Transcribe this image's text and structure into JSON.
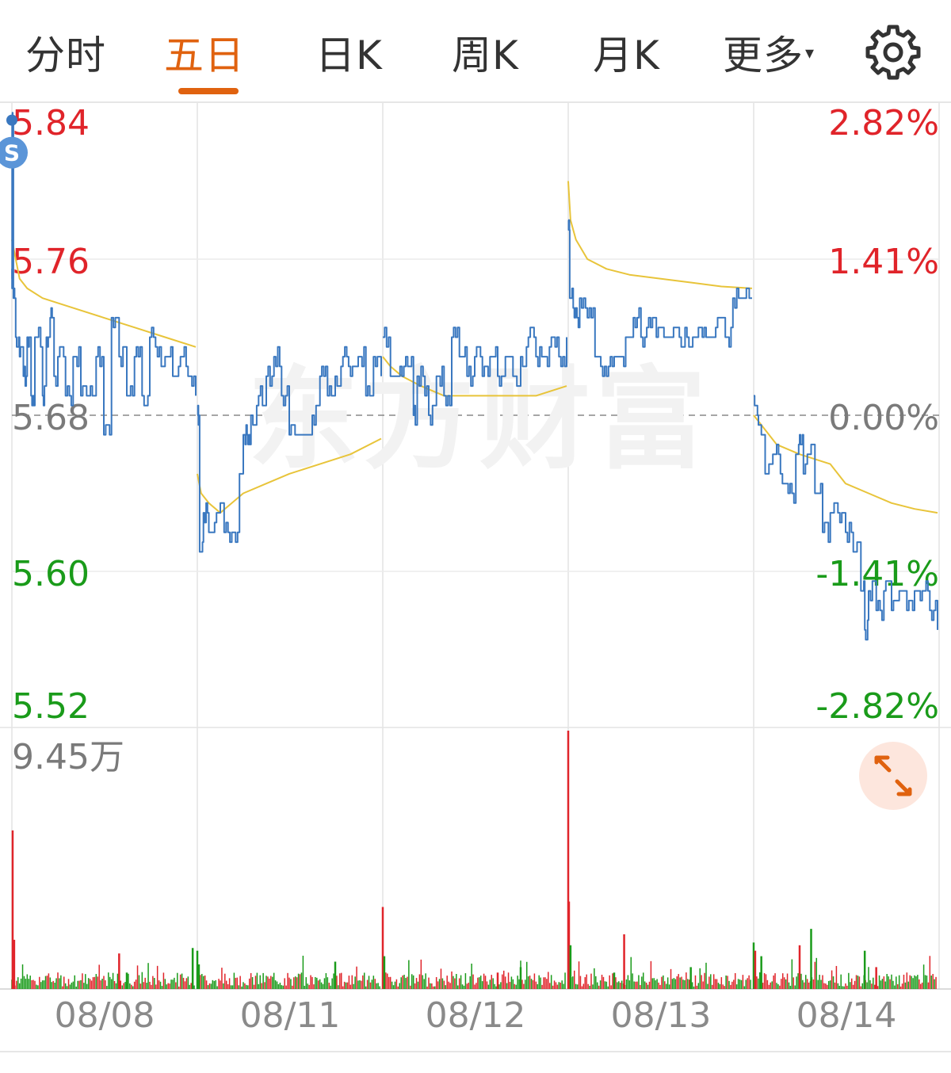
{
  "tabs": [
    {
      "label": "分时",
      "active": false
    },
    {
      "label": "五日",
      "active": true
    },
    {
      "label": "日K",
      "active": false
    },
    {
      "label": "周K",
      "active": false
    },
    {
      "label": "月K",
      "active": false
    },
    {
      "label": "更多",
      "active": false
    }
  ],
  "more_arrow": "▾",
  "icons": {
    "settings": "gear-icon",
    "expand": "expand-diagonal-icon",
    "marker": "s-badge"
  },
  "marker_label": "S",
  "watermark": "东方财富",
  "colors": {
    "accent": "#e0620f",
    "up": "#e0242a",
    "down": "#1a9b1a",
    "price_line": "#3a78c0",
    "avg_line": "#e8c43a",
    "neutral": "#7a7a7a"
  },
  "chart_data": {
    "type": "line",
    "dates": [
      "08/08",
      "08/11",
      "08/12",
      "08/13",
      "08/14"
    ],
    "prev_close": 5.68,
    "y_ticks": [
      "5.84",
      "5.76",
      "5.68",
      "5.60",
      "5.52"
    ],
    "pct_ticks": [
      "2.82%",
      "1.41%",
      "0.00%",
      "-1.41%",
      "-2.82%"
    ],
    "ylim": [
      5.52,
      5.84
    ],
    "volume_max_label": "9.45万",
    "series": [
      {
        "key": "price",
        "days": [
          [
            [
              0,
              5.75
            ],
            [
              0.3,
              5.83
            ],
            [
              2,
              5.74
            ],
            [
              5,
              5.72
            ],
            [
              10,
              5.71
            ],
            [
              15,
              5.7
            ],
            [
              20,
              5.72
            ],
            [
              25,
              5.69
            ],
            [
              30,
              5.72
            ],
            [
              40,
              5.69
            ],
            [
              45,
              5.72
            ],
            [
              50,
              5.73
            ],
            [
              55,
              5.7
            ],
            [
              60,
              5.71
            ],
            [
              70,
              5.69
            ],
            [
              80,
              5.71
            ],
            [
              90,
              5.69
            ],
            [
              100,
              5.69
            ],
            [
              110,
              5.71
            ],
            [
              120,
              5.67
            ],
            [
              130,
              5.73
            ],
            [
              140,
              5.71
            ],
            [
              150,
              5.69
            ],
            [
              160,
              5.71
            ],
            [
              170,
              5.69
            ],
            [
              180,
              5.72
            ],
            [
              190,
              5.71
            ],
            [
              200,
              5.71
            ],
            [
              210,
              5.7
            ],
            [
              220,
              5.71
            ],
            [
              230,
              5.7
            ],
            [
              240,
              5.69
            ]
          ],
          [
            [
              0,
              5.68
            ],
            [
              3,
              5.61
            ],
            [
              8,
              5.63
            ],
            [
              15,
              5.62
            ],
            [
              25,
              5.63
            ],
            [
              35,
              5.62
            ],
            [
              45,
              5.62
            ],
            [
              55,
              5.65
            ],
            [
              60,
              5.67
            ],
            [
              65,
              5.67
            ],
            [
              70,
              5.68
            ],
            [
              80,
              5.69
            ],
            [
              90,
              5.7
            ],
            [
              100,
              5.71
            ],
            [
              110,
              5.69
            ],
            [
              120,
              5.67
            ],
            [
              130,
              5.67
            ],
            [
              140,
              5.67
            ],
            [
              150,
              5.68
            ],
            [
              160,
              5.7
            ],
            [
              170,
              5.69
            ],
            [
              180,
              5.7
            ],
            [
              190,
              5.71
            ],
            [
              200,
              5.7
            ],
            [
              210,
              5.71
            ],
            [
              220,
              5.69
            ],
            [
              230,
              5.71
            ],
            [
              240,
              5.7
            ]
          ],
          [
            [
              0,
              5.72
            ],
            [
              10,
              5.7
            ],
            [
              20,
              5.7
            ],
            [
              30,
              5.71
            ],
            [
              40,
              5.68
            ],
            [
              45,
              5.7
            ],
            [
              55,
              5.69
            ],
            [
              60,
              5.68
            ],
            [
              70,
              5.7
            ],
            [
              80,
              5.69
            ],
            [
              90,
              5.72
            ],
            [
              100,
              5.71
            ],
            [
              110,
              5.7
            ],
            [
              120,
              5.71
            ],
            [
              130,
              5.7
            ],
            [
              140,
              5.71
            ],
            [
              150,
              5.7
            ],
            [
              160,
              5.71
            ],
            [
              170,
              5.7
            ],
            [
              180,
              5.71
            ],
            [
              190,
              5.72
            ],
            [
              200,
              5.71
            ],
            [
              210,
              5.71
            ],
            [
              220,
              5.72
            ],
            [
              230,
              5.71
            ],
            [
              240,
              5.72
            ]
          ],
          [
            [
              0,
              5.78
            ],
            [
              2,
              5.74
            ],
            [
              8,
              5.73
            ],
            [
              15,
              5.74
            ],
            [
              25,
              5.73
            ],
            [
              35,
              5.71
            ],
            [
              45,
              5.7
            ],
            [
              55,
              5.71
            ],
            [
              65,
              5.71
            ],
            [
              75,
              5.72
            ],
            [
              85,
              5.73
            ],
            [
              95,
              5.72
            ],
            [
              105,
              5.73
            ],
            [
              115,
              5.72
            ],
            [
              125,
              5.72
            ],
            [
              135,
              5.72
            ],
            [
              145,
              5.72
            ],
            [
              155,
              5.72
            ],
            [
              165,
              5.72
            ],
            [
              175,
              5.72
            ],
            [
              185,
              5.72
            ],
            [
              195,
              5.73
            ],
            [
              205,
              5.72
            ],
            [
              215,
              5.74
            ],
            [
              225,
              5.74
            ],
            [
              240,
              5.74
            ]
          ],
          [
            [
              0,
              5.69
            ],
            [
              5,
              5.68
            ],
            [
              10,
              5.67
            ],
            [
              15,
              5.65
            ],
            [
              25,
              5.66
            ],
            [
              35,
              5.65
            ],
            [
              45,
              5.64
            ],
            [
              55,
              5.66
            ],
            [
              60,
              5.67
            ],
            [
              65,
              5.65
            ],
            [
              70,
              5.66
            ],
            [
              80,
              5.64
            ],
            [
              90,
              5.62
            ],
            [
              100,
              5.63
            ],
            [
              110,
              5.63
            ],
            [
              120,
              5.62
            ],
            [
              130,
              5.61
            ],
            [
              140,
              5.59
            ],
            [
              145,
              5.57
            ],
            [
              150,
              5.59
            ],
            [
              160,
              5.58
            ],
            [
              170,
              5.59
            ],
            [
              180,
              5.58
            ],
            [
              190,
              5.59
            ],
            [
              200,
              5.58
            ],
            [
              210,
              5.59
            ],
            [
              220,
              5.59
            ],
            [
              230,
              5.58
            ],
            [
              240,
              5.57
            ]
          ]
        ]
      },
      {
        "key": "average",
        "days": [
          [
            [
              0,
              5.77
            ],
            [
              10,
              5.75
            ],
            [
              20,
              5.745
            ],
            [
              40,
              5.74
            ],
            [
              80,
              5.735
            ],
            [
              120,
              5.73
            ],
            [
              160,
              5.725
            ],
            [
              200,
              5.72
            ],
            [
              240,
              5.715
            ]
          ],
          [
            [
              0,
              5.65
            ],
            [
              5,
              5.64
            ],
            [
              15,
              5.635
            ],
            [
              30,
              5.63
            ],
            [
              60,
              5.64
            ],
            [
              90,
              5.645
            ],
            [
              120,
              5.65
            ],
            [
              160,
              5.655
            ],
            [
              200,
              5.66
            ],
            [
              240,
              5.668
            ]
          ],
          [
            [
              0,
              5.71
            ],
            [
              10,
              5.705
            ],
            [
              25,
              5.7
            ],
            [
              50,
              5.695
            ],
            [
              80,
              5.69
            ],
            [
              120,
              5.69
            ],
            [
              160,
              5.69
            ],
            [
              200,
              5.69
            ],
            [
              240,
              5.695
            ]
          ],
          [
            [
              0,
              5.8
            ],
            [
              3,
              5.78
            ],
            [
              10,
              5.77
            ],
            [
              25,
              5.76
            ],
            [
              50,
              5.755
            ],
            [
              80,
              5.752
            ],
            [
              120,
              5.75
            ],
            [
              160,
              5.748
            ],
            [
              200,
              5.746
            ],
            [
              240,
              5.745
            ]
          ],
          [
            [
              0,
              5.68
            ],
            [
              10,
              5.675
            ],
            [
              30,
              5.665
            ],
            [
              60,
              5.66
            ],
            [
              100,
              5.655
            ],
            [
              120,
              5.645
            ],
            [
              150,
              5.64
            ],
            [
              180,
              5.635
            ],
            [
              210,
              5.632
            ],
            [
              240,
              5.63
            ]
          ]
        ]
      }
    ],
    "volume_spikes": [
      {
        "day": 0,
        "t": 1,
        "v": 5.8,
        "dir": "up"
      },
      {
        "day": 0,
        "t": 3,
        "v": 1.8,
        "dir": "up"
      },
      {
        "day": 0,
        "t": 140,
        "v": 1.3,
        "dir": "up"
      },
      {
        "day": 0,
        "t": 150,
        "v": 0.6,
        "dir": "down"
      },
      {
        "day": 0,
        "t": 236,
        "v": 1.5,
        "dir": "down"
      },
      {
        "day": 1,
        "t": 0,
        "v": 1.4,
        "dir": "down"
      },
      {
        "day": 1,
        "t": 2,
        "v": 0.9,
        "dir": "down"
      },
      {
        "day": 1,
        "t": 180,
        "v": 1.0,
        "dir": "down"
      },
      {
        "day": 2,
        "t": 0,
        "v": 3.0,
        "dir": "up"
      },
      {
        "day": 2,
        "t": 2,
        "v": 1.2,
        "dir": "down"
      },
      {
        "day": 2,
        "t": 150,
        "v": 0.6,
        "dir": "up"
      },
      {
        "day": 2,
        "t": 180,
        "v": 0.8,
        "dir": "down"
      },
      {
        "day": 3,
        "t": 0,
        "v": 9.45,
        "dir": "up"
      },
      {
        "day": 3,
        "t": 1,
        "v": 3.2,
        "dir": "up"
      },
      {
        "day": 3,
        "t": 3,
        "v": 1.6,
        "dir": "down"
      },
      {
        "day": 3,
        "t": 60,
        "v": 0.6,
        "dir": "down"
      },
      {
        "day": 3,
        "t": 73,
        "v": 2.0,
        "dir": "up"
      },
      {
        "day": 3,
        "t": 160,
        "v": 0.8,
        "dir": "down"
      },
      {
        "day": 4,
        "t": 0,
        "v": 1.7,
        "dir": "down"
      },
      {
        "day": 4,
        "t": 2,
        "v": 1.4,
        "dir": "up"
      },
      {
        "day": 4,
        "t": 10,
        "v": 1.2,
        "dir": "down"
      },
      {
        "day": 4,
        "t": 60,
        "v": 1.6,
        "dir": "up"
      },
      {
        "day": 4,
        "t": 75,
        "v": 2.2,
        "dir": "down"
      },
      {
        "day": 4,
        "t": 145,
        "v": 1.4,
        "dir": "down"
      },
      {
        "day": 4,
        "t": 160,
        "v": 0.8,
        "dir": "up"
      }
    ],
    "grid": true,
    "reference_line": "dashed"
  }
}
